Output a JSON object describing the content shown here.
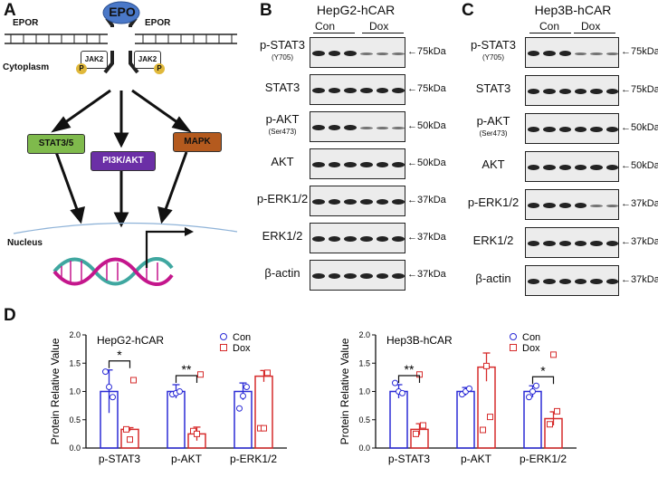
{
  "panel_a": {
    "letter": "A",
    "epo": "EPO",
    "epor_left": "EPOR",
    "epor_right": "EPOR",
    "jak2_left": "JAK2",
    "jak2_right": "JAK2",
    "phospho": "P",
    "cytoplasm": "Cytoplasm",
    "nucleus": "Nucleus",
    "pathways": [
      "STAT3/5",
      "PI3K/AKT",
      "MAPK"
    ],
    "colors": {
      "epo": "#4a78c8",
      "stat": "#7fba4c",
      "pi3k": "#6b2fa6",
      "mapk": "#b45a1e",
      "p_badge": "#e0b83a",
      "dna1": "#c4168c",
      "dna2": "#3fa7a0"
    }
  },
  "panel_b": {
    "letter": "B",
    "title": "HepG2-hCAR",
    "groups": [
      "Con",
      "Dox"
    ],
    "rows": [
      {
        "label": "p-STAT3",
        "sub": "(Y705)",
        "marker": "75kDa"
      },
      {
        "label": "STAT3",
        "sub": "",
        "marker": "75kDa"
      },
      {
        "label": "p-AKT",
        "sub": "(Ser473)",
        "marker": "50kDa"
      },
      {
        "label": "AKT",
        "sub": "",
        "marker": "50kDa"
      },
      {
        "label": "p-ERK1/2",
        "sub": "",
        "marker": "37kDa"
      },
      {
        "label": "ERK1/2",
        "sub": "",
        "marker": "37kDa"
      },
      {
        "label": "β-actin",
        "sub": "",
        "marker": "37kDa"
      }
    ]
  },
  "panel_c": {
    "letter": "C",
    "title": "Hep3B-hCAR",
    "groups": [
      "Con",
      "Dox"
    ],
    "rows": [
      {
        "label": "p-STAT3",
        "sub": "(Y705)",
        "marker": "75kDa"
      },
      {
        "label": "STAT3",
        "sub": "",
        "marker": "75kDa"
      },
      {
        "label": "p-AKT",
        "sub": "(Ser473)",
        "marker": "50kDa"
      },
      {
        "label": "AKT",
        "sub": "",
        "marker": "50kDa"
      },
      {
        "label": "p-ERK1/2",
        "sub": "",
        "marker": "37kDa"
      },
      {
        "label": "ERK1/2",
        "sub": "",
        "marker": "37kDa"
      },
      {
        "label": "β-actin",
        "sub": "",
        "marker": "37kDa"
      }
    ]
  },
  "panel_d": {
    "letter": "D"
  },
  "chart_data": [
    {
      "type": "bar",
      "title": "HepG2-hCAR",
      "ylabel": "Protein Relative Value",
      "categories": [
        "p-STAT3",
        "p-AKT",
        "p-ERK1/2"
      ],
      "ylim": [
        0,
        2.0
      ],
      "yticks": [
        "0.0",
        "0.5",
        "1.0",
        "1.5",
        "2.0"
      ],
      "series": [
        {
          "name": "Con",
          "color": "#2b2bd6",
          "values": [
            1.0,
            1.0,
            1.0
          ],
          "errors": [
            0.38,
            0.12,
            0.15
          ],
          "points": [
            [
              1.35,
              0.95,
              0.7
            ],
            [
              1.08,
              0.97,
              0.92
            ],
            [
              0.9,
              1.0,
              1.08
            ]
          ]
        },
        {
          "name": "Dox",
          "color": "#d62b2b",
          "values": [
            0.33,
            0.25,
            1.27
          ],
          "errors": [
            0.03,
            0.12,
            0.1
          ],
          "points": [
            [
              0.33,
              0.3,
              0.35
            ],
            [
              0.15,
              0.25,
              0.35
            ],
            [
              1.2,
              1.3,
              1.33
            ]
          ]
        }
      ],
      "significance": [
        {
          "category": "p-STAT3",
          "label": "*"
        },
        {
          "category": "p-AKT",
          "label": "**"
        }
      ],
      "legend": "top-right"
    },
    {
      "type": "bar",
      "title": "Hep3B-hCAR",
      "ylabel": "Protein Relative Value",
      "categories": [
        "p-STAT3",
        "p-AKT",
        "p-ERK1/2"
      ],
      "ylim": [
        0,
        2.0
      ],
      "yticks": [
        "0.0",
        "0.5",
        "1.0",
        "1.5",
        "2.0"
      ],
      "series": [
        {
          "name": "Con",
          "color": "#2b2bd6",
          "values": [
            1.0,
            1.0,
            1.0
          ],
          "errors": [
            0.12,
            0.07,
            0.1
          ],
          "points": [
            [
              1.15,
              0.95,
              0.9
            ],
            [
              1.0,
              1.0,
              1.0
            ],
            [
              0.97,
              1.05,
              1.1
            ]
          ]
        },
        {
          "name": "Dox",
          "color": "#d62b2b",
          "values": [
            0.33,
            1.43,
            0.52
          ],
          "errors": [
            0.1,
            0.25,
            0.12
          ],
          "points": [
            [
              0.25,
              0.32,
              0.42
            ],
            [
              1.3,
              1.45,
              1.65
            ],
            [
              0.4,
              0.55,
              0.65
            ]
          ]
        }
      ],
      "significance": [
        {
          "category": "p-STAT3",
          "label": "**"
        },
        {
          "category": "p-ERK1/2",
          "label": "*"
        }
      ],
      "legend": "top-right"
    }
  ]
}
